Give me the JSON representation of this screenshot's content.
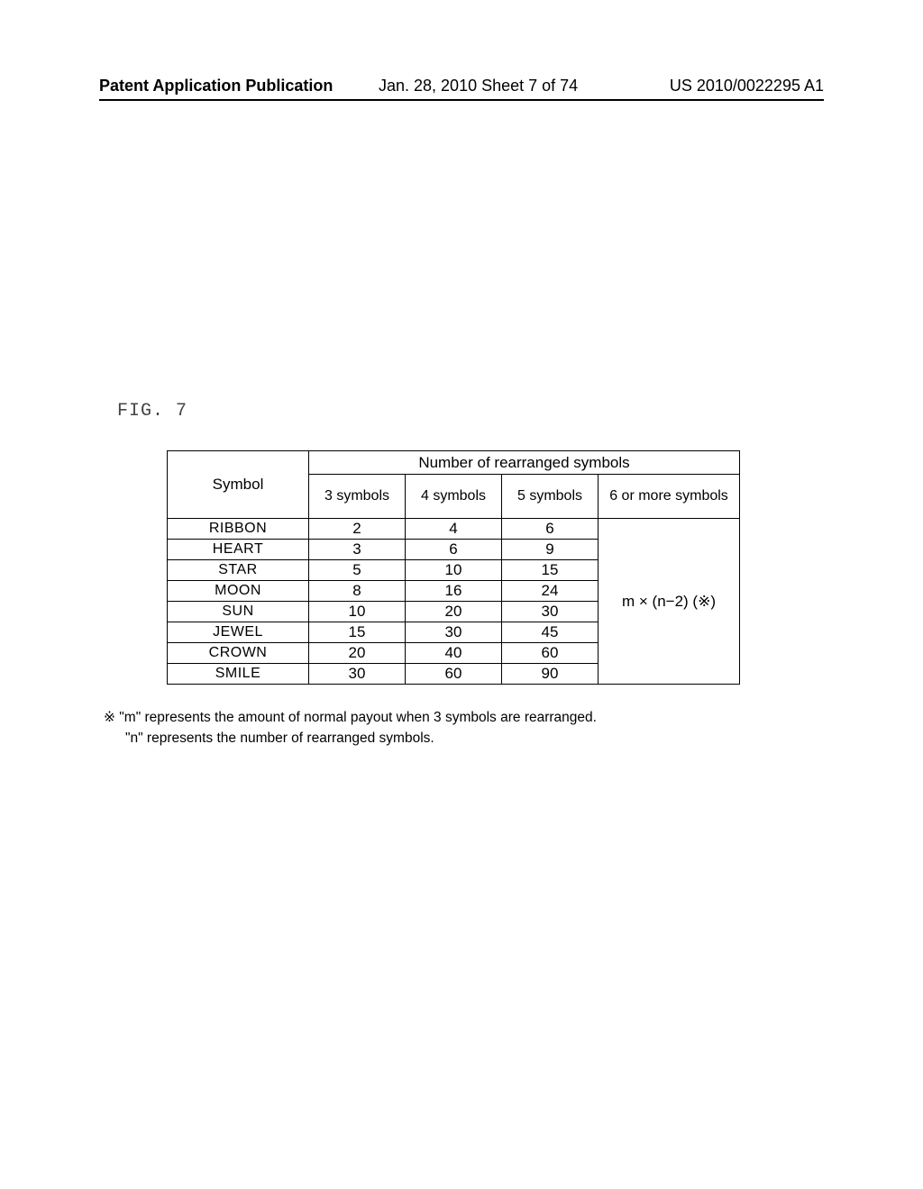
{
  "header": {
    "left": "Patent Application Publication",
    "center": "Jan. 28, 2010  Sheet 7 of 74",
    "right": "US 2010/0022295 A1"
  },
  "figure_label": "FIG. 7",
  "table": {
    "super_header": "Number of rearranged symbols",
    "row_header": "Symbol",
    "col_headers": [
      "3 symbols",
      "4 symbols",
      "5 symbols",
      "6 or more symbols"
    ],
    "rows": [
      {
        "symbol": "RIBBON",
        "v3": "2",
        "v4": "4",
        "v5": "6"
      },
      {
        "symbol": "HEART",
        "v3": "3",
        "v4": "6",
        "v5": "9"
      },
      {
        "symbol": "STAR",
        "v3": "5",
        "v4": "10",
        "v5": "15"
      },
      {
        "symbol": "MOON",
        "v3": "8",
        "v4": "16",
        "v5": "24"
      },
      {
        "symbol": "SUN",
        "v3": "10",
        "v4": "20",
        "v5": "30"
      },
      {
        "symbol": "JEWEL",
        "v3": "15",
        "v4": "30",
        "v5": "45"
      },
      {
        "symbol": "CROWN",
        "v3": "20",
        "v4": "40",
        "v5": "60"
      },
      {
        "symbol": "SMILE",
        "v3": "30",
        "v4": "60",
        "v5": "90"
      }
    ],
    "formula": "m × (n−2) (※)"
  },
  "footnote": {
    "line1": "※ \"m\" represents the amount of normal payout when 3 symbols are rearranged.",
    "line2": "\"n\" represents the number of rearranged symbols."
  }
}
